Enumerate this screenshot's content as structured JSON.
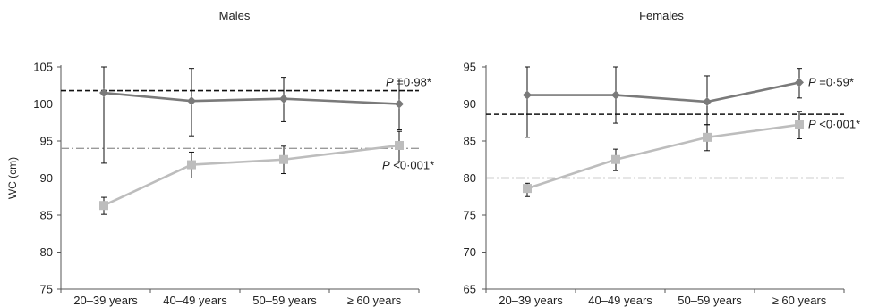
{
  "y_axis_title": "WC (cm)",
  "colors": {
    "diamond_series": "#7a7a7a",
    "square_series": "#bdbdbd",
    "dashed_line": "#111111",
    "dashdot_line": "#9a9a9a",
    "error_bar": "#111111",
    "axis": "#555555"
  },
  "chart_data": [
    {
      "type": "line",
      "title": "Males",
      "ylabel": "WC (cm)",
      "ylim": [
        75,
        105
      ],
      "yticks": [
        75,
        80,
        85,
        90,
        95,
        100,
        105
      ],
      "categories": [
        "20–39 years",
        "40–49 years",
        "50–59 years",
        "≥ 60 years"
      ],
      "series": [
        {
          "marker": "diamond",
          "values": [
            101.5,
            100.4,
            100.7,
            100.0
          ],
          "err_low": [
            92.0,
            95.7,
            97.6,
            96.5
          ],
          "err_high": [
            105.0,
            104.8,
            103.6,
            103.4
          ]
        },
        {
          "marker": "square",
          "values": [
            86.3,
            91.8,
            92.5,
            94.4
          ],
          "err_low": [
            85.1,
            90.0,
            90.6,
            92.2
          ],
          "err_high": [
            87.4,
            93.5,
            94.3,
            96.3
          ]
        }
      ],
      "reference_lines": [
        {
          "style": "dashed",
          "y": 101.8
        },
        {
          "style": "dashdot",
          "y": 94.0
        }
      ],
      "annotations": [
        {
          "p": "P",
          "text": " =0·98*",
          "near": "dashed"
        },
        {
          "p": "P",
          "text": " <0·001*",
          "near": "dashdot"
        }
      ]
    },
    {
      "type": "line",
      "title": "Females",
      "ylabel": "",
      "ylim": [
        65,
        95
      ],
      "yticks": [
        65,
        70,
        75,
        80,
        85,
        90,
        95
      ],
      "categories": [
        "20–39 years",
        "40–49 years",
        "50–59 years",
        "≥ 60 years"
      ],
      "series": [
        {
          "marker": "diamond",
          "values": [
            91.2,
            91.2,
            90.3,
            92.9
          ],
          "err_low": [
            85.5,
            87.4,
            87.2,
            90.8
          ],
          "err_high": [
            95.0,
            95.0,
            93.8,
            94.8
          ]
        },
        {
          "marker": "square",
          "values": [
            78.6,
            82.5,
            85.5,
            87.2
          ],
          "err_low": [
            77.5,
            81.0,
            83.7,
            85.3
          ],
          "err_high": [
            79.3,
            83.9,
            87.2,
            89.0
          ]
        }
      ],
      "reference_lines": [
        {
          "style": "dashed",
          "y": 88.6
        },
        {
          "style": "dashdot",
          "y": 80.0
        }
      ],
      "annotations": [
        {
          "p": "P",
          "text": " =0·59*",
          "near": "diamond"
        },
        {
          "p": "P",
          "text": " <0·001*",
          "near": "square"
        }
      ]
    }
  ]
}
